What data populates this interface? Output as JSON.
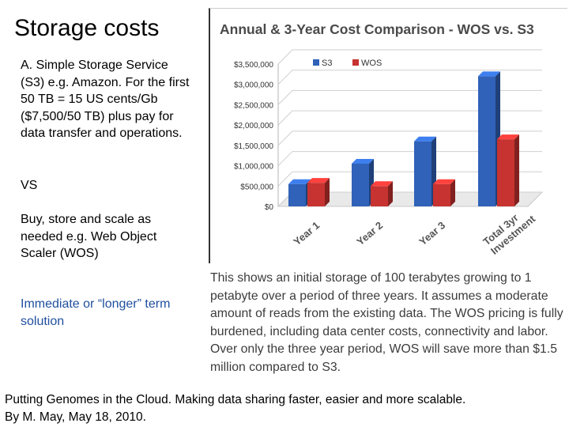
{
  "slide": {
    "title": "Storage costs",
    "para1": "A. Simple Storage Service (S3) e.g. Amazon. For the first 50 TB = 15 US cents/Gb ($7,500/50 TB) plus pay for data transfer and operations.",
    "para2": "VS",
    "para3": "Buy, store and scale as needed e.g. Web Object Scaler (WOS)",
    "para4": "Immediate or “longer” term solution"
  },
  "caption": "This shows an initial storage of 100 terabytes growing to 1 petabyte over a period of three years. It assumes a moderate amount of reads from the existing data. The WOS pricing is fully burdened, including data center costs, connectivity and labor. Over only the three year period, WOS will save more than $1.5 million compared to S3.",
  "footer": {
    "bold": "Putting Genomes in the Cloud",
    "rest": ". Making data sharing faster, easier and more scalable.",
    "line2": "By M. May, May 18, 2010."
  },
  "colors": {
    "s3": "#2f62b8",
    "wos": "#c63330"
  },
  "chart_data": {
    "type": "bar",
    "title": "Annual & 3-Year Cost Comparison - WOS vs. S3",
    "categories": [
      "Year 1",
      "Year 2",
      "Year 3",
      "Total 3yr Investment"
    ],
    "series": [
      {
        "name": "S3",
        "values": [
          550000,
          1050000,
          1600000,
          3200000
        ]
      },
      {
        "name": "WOS",
        "values": [
          580000,
          500000,
          550000,
          1650000
        ]
      }
    ],
    "yticks": [
      "$0",
      "$500,000",
      "$1,000,000",
      "$1,500,000",
      "$2,000,000",
      "$2,500,000",
      "$3,000,000",
      "$3,500,000"
    ],
    "ylim": [
      0,
      3500000
    ],
    "legend": "top-left",
    "xlabel": "",
    "ylabel": ""
  }
}
